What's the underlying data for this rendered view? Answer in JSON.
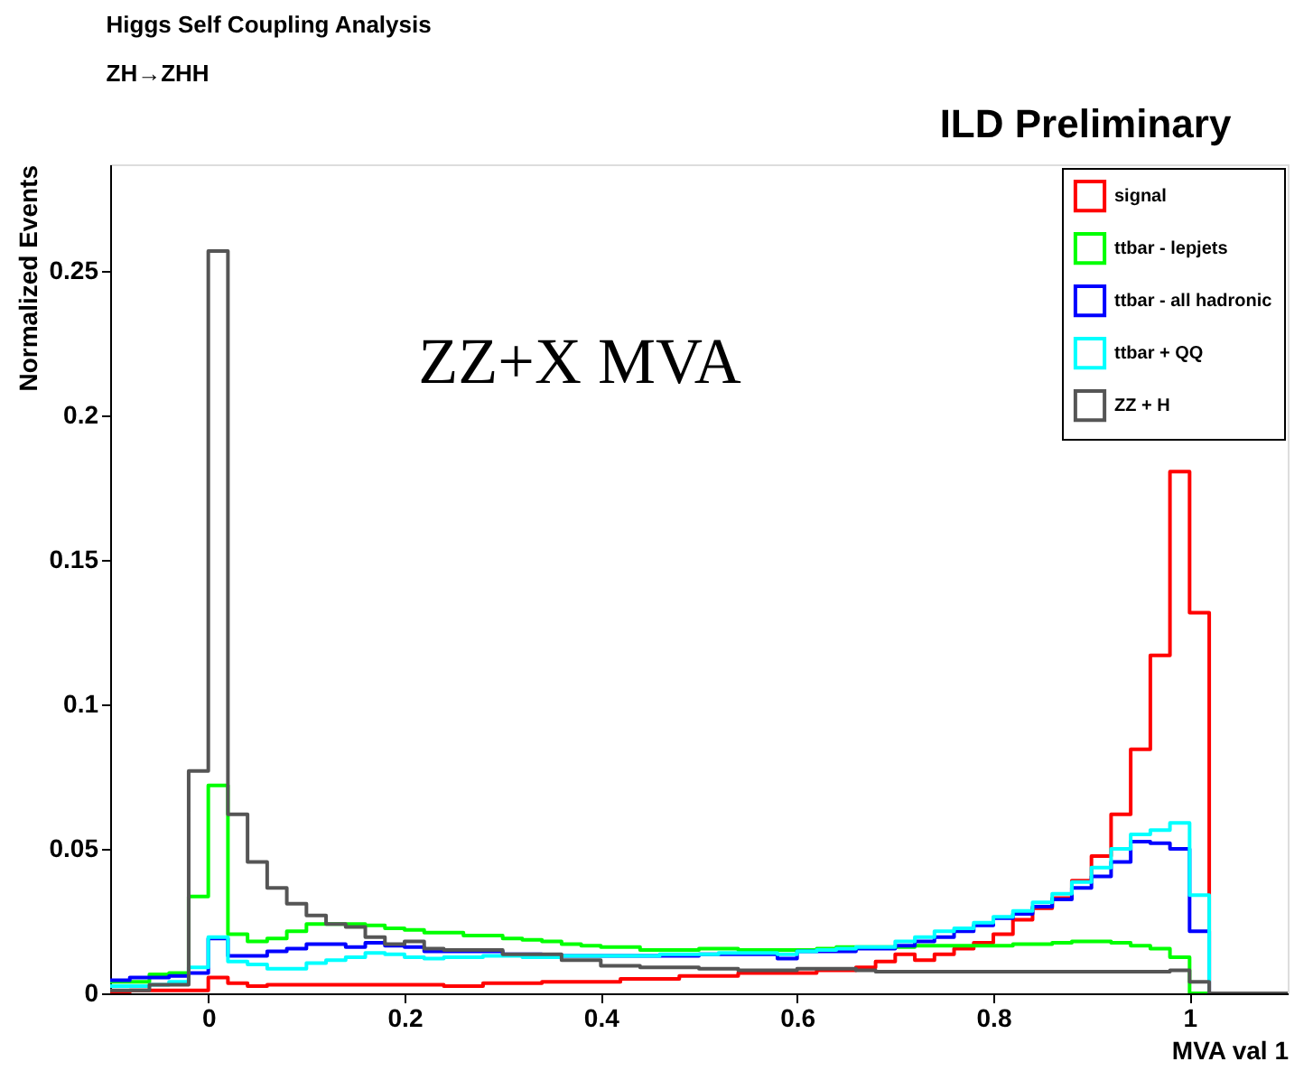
{
  "chart_data": {
    "type": "histogram",
    "title": "Higgs Self Coupling Analysis",
    "subtitle": "ZH→ZHH",
    "xlabel": "MVA val 1",
    "ylabel": "Normalized Events",
    "annotations": [
      "ILD Preliminary",
      "ZZ+X MVA"
    ],
    "bins": [
      -0.1,
      -0.08,
      -0.06,
      -0.04,
      -0.02,
      0,
      0.02,
      0.04,
      0.06,
      0.08,
      0.1,
      0.12,
      0.14,
      0.16,
      0.18,
      0.2,
      0.22,
      0.24,
      0.26,
      0.28,
      0.3,
      0.32,
      0.34,
      0.36,
      0.38,
      0.4,
      0.42,
      0.44,
      0.46,
      0.48,
      0.5,
      0.52,
      0.54,
      0.56,
      0.58,
      0.6,
      0.62,
      0.64,
      0.66,
      0.68,
      0.7,
      0.72,
      0.74,
      0.76,
      0.78,
      0.8,
      0.82,
      0.84,
      0.86,
      0.88,
      0.9,
      0.92,
      0.94,
      0.96,
      0.98,
      1,
      1.02,
      1.04,
      1.06,
      1.08,
      1.1
    ],
    "series": [
      {
        "name": "signal",
        "color": "#ff0000",
        "values": [
          0.0005,
          0.001,
          0.001,
          0.001,
          0.001,
          0.0055,
          0.0035,
          0.0025,
          0.003,
          0.003,
          0.003,
          0.003,
          0.003,
          0.003,
          0.003,
          0.003,
          0.003,
          0.0025,
          0.0025,
          0.0035,
          0.0035,
          0.0035,
          0.004,
          0.004,
          0.004,
          0.004,
          0.005,
          0.005,
          0.005,
          0.006,
          0.006,
          0.006,
          0.007,
          0.007,
          0.007,
          0.007,
          0.008,
          0.008,
          0.009,
          0.011,
          0.0135,
          0.0115,
          0.0135,
          0.0155,
          0.0175,
          0.0205,
          0.0255,
          0.0295,
          0.033,
          0.039,
          0.0475,
          0.062,
          0.0845,
          0.117,
          0.1806,
          0.1318,
          0,
          0,
          0,
          0
        ]
      },
      {
        "name": "ttbar - lepjets",
        "color": "#00ff00",
        "values": [
          0.004,
          0.004,
          0.0066,
          0.007,
          0.0335,
          0.072,
          0.0205,
          0.018,
          0.019,
          0.0215,
          0.024,
          0.024,
          0.024,
          0.0235,
          0.0225,
          0.022,
          0.021,
          0.021,
          0.02,
          0.02,
          0.019,
          0.0185,
          0.018,
          0.017,
          0.0165,
          0.016,
          0.016,
          0.015,
          0.015,
          0.015,
          0.0155,
          0.0155,
          0.015,
          0.015,
          0.015,
          0.015,
          0.0155,
          0.016,
          0.016,
          0.016,
          0.016,
          0.0165,
          0.0165,
          0.0165,
          0.0165,
          0.0165,
          0.017,
          0.017,
          0.0175,
          0.018,
          0.018,
          0.0175,
          0.0165,
          0.0155,
          0.0125,
          0,
          0,
          0,
          0,
          0
        ]
      },
      {
        "name": "ttbar - all hadronic",
        "color": "#0000ff",
        "values": [
          0.0045,
          0.0055,
          0.0055,
          0.006,
          0.007,
          0.019,
          0.013,
          0.013,
          0.0145,
          0.0155,
          0.017,
          0.017,
          0.016,
          0.0175,
          0.0165,
          0.016,
          0.0145,
          0.0145,
          0.0145,
          0.0145,
          0.0135,
          0.0135,
          0.013,
          0.013,
          0.013,
          0.013,
          0.013,
          0.013,
          0.013,
          0.013,
          0.0135,
          0.0135,
          0.0135,
          0.0135,
          0.012,
          0.0145,
          0.0145,
          0.0145,
          0.0155,
          0.0155,
          0.0165,
          0.018,
          0.0195,
          0.0215,
          0.0235,
          0.026,
          0.0275,
          0.03,
          0.0325,
          0.0365,
          0.0405,
          0.0455,
          0.0525,
          0.052,
          0.05,
          0.0215,
          0,
          0,
          0,
          0
        ]
      },
      {
        "name": "ttbar + QQ",
        "color": "#00ffff",
        "values": [
          0.0025,
          0.0025,
          0.003,
          0.004,
          0.009,
          0.0195,
          0.011,
          0.01,
          0.0085,
          0.0085,
          0.0105,
          0.0115,
          0.0125,
          0.014,
          0.0135,
          0.0125,
          0.012,
          0.0125,
          0.0125,
          0.013,
          0.013,
          0.0125,
          0.0125,
          0.013,
          0.013,
          0.013,
          0.013,
          0.013,
          0.0135,
          0.0135,
          0.0135,
          0.014,
          0.014,
          0.014,
          0.0135,
          0.0145,
          0.015,
          0.0155,
          0.016,
          0.016,
          0.018,
          0.0195,
          0.0215,
          0.0225,
          0.0245,
          0.0265,
          0.0285,
          0.0315,
          0.0345,
          0.0385,
          0.0435,
          0.05,
          0.055,
          0.0565,
          0.059,
          0.034,
          0,
          0,
          0,
          0
        ]
      },
      {
        "name": "ZZ + H",
        "color": "#555555",
        "values": [
          0.001,
          0.001,
          0.003,
          0.003,
          0.077,
          0.257,
          0.062,
          0.0455,
          0.0365,
          0.031,
          0.027,
          0.024,
          0.023,
          0.0195,
          0.017,
          0.018,
          0.0155,
          0.015,
          0.015,
          0.015,
          0.0135,
          0.0135,
          0.0135,
          0.0115,
          0.0115,
          0.0095,
          0.0095,
          0.009,
          0.009,
          0.009,
          0.0085,
          0.0085,
          0.008,
          0.008,
          0.008,
          0.0085,
          0.0085,
          0.0085,
          0.008,
          0.0075,
          0.0075,
          0.0075,
          0.0075,
          0.0075,
          0.0075,
          0.0075,
          0.0075,
          0.0075,
          0.0075,
          0.0075,
          0.0075,
          0.0075,
          0.0075,
          0.0075,
          0.008,
          0.004,
          0,
          0,
          0,
          0
        ]
      }
    ],
    "xlim": [
      -0.1,
      1.1
    ],
    "xticks": [
      0,
      0.2,
      0.4,
      0.6,
      0.8,
      1
    ],
    "ylim": [
      0,
      0.287
    ],
    "yticks": [
      0,
      0.05,
      0.1,
      0.15,
      0.2,
      0.25
    ],
    "legend": "top right"
  }
}
